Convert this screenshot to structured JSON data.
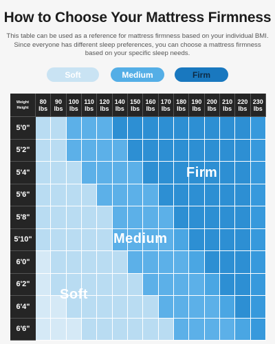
{
  "header": {
    "title": "How to Choose Your Mattress Firmness",
    "description": "This table can be used as a reference for mattress firmness based on your individual BMI. Since everyone has different sleep preferences, you can choose a mattress firmness based on your specific sleep needs."
  },
  "legend": {
    "soft": "Soft",
    "medium": "Medium",
    "firm": "Firm"
  },
  "table": {
    "corner_line1": "Weight",
    "corner_line2": "Height",
    "weights": [
      "80",
      "90",
      "100",
      "110",
      "120",
      "140",
      "150",
      "160",
      "170",
      "180",
      "190",
      "200",
      "210",
      "220",
      "230"
    ],
    "unit": "lbs",
    "heights": [
      "5'0\"",
      "5'2\"",
      "5'4\"",
      "5'6\"",
      "5'8\"",
      "5'10\"",
      "6'0\"",
      "6'2\"",
      "6'4\"",
      "6'6\""
    ],
    "levels": [
      [
        1,
        1,
        2,
        2,
        2,
        4,
        4,
        4,
        4,
        4,
        4,
        4,
        4,
        4,
        5
      ],
      [
        1,
        1,
        2,
        2,
        2,
        2,
        4,
        4,
        4,
        4,
        4,
        4,
        4,
        4,
        5
      ],
      [
        1,
        1,
        1,
        2,
        2,
        2,
        2,
        4,
        4,
        4,
        4,
        4,
        4,
        4,
        5
      ],
      [
        1,
        1,
        1,
        1,
        2,
        2,
        2,
        2,
        4,
        4,
        4,
        4,
        4,
        4,
        5
      ],
      [
        1,
        1,
        1,
        1,
        1,
        2,
        2,
        2,
        2,
        4,
        4,
        4,
        4,
        4,
        5
      ],
      [
        1,
        1,
        1,
        1,
        1,
        2,
        2,
        2,
        2,
        3,
        4,
        4,
        4,
        4,
        5
      ],
      [
        0,
        1,
        1,
        1,
        1,
        1,
        2,
        2,
        2,
        2,
        3,
        4,
        4,
        4,
        5
      ],
      [
        0,
        1,
        1,
        1,
        1,
        1,
        1,
        2,
        2,
        2,
        2,
        3,
        4,
        4,
        5
      ],
      [
        0,
        0,
        1,
        1,
        1,
        1,
        1,
        1,
        2,
        2,
        2,
        2,
        3,
        4,
        5
      ],
      [
        0,
        0,
        0,
        1,
        1,
        1,
        1,
        1,
        1,
        2,
        2,
        2,
        2,
        3,
        5
      ]
    ],
    "zone_labels": {
      "firm": "Firm",
      "medium": "Medium",
      "soft": "Soft"
    }
  }
}
